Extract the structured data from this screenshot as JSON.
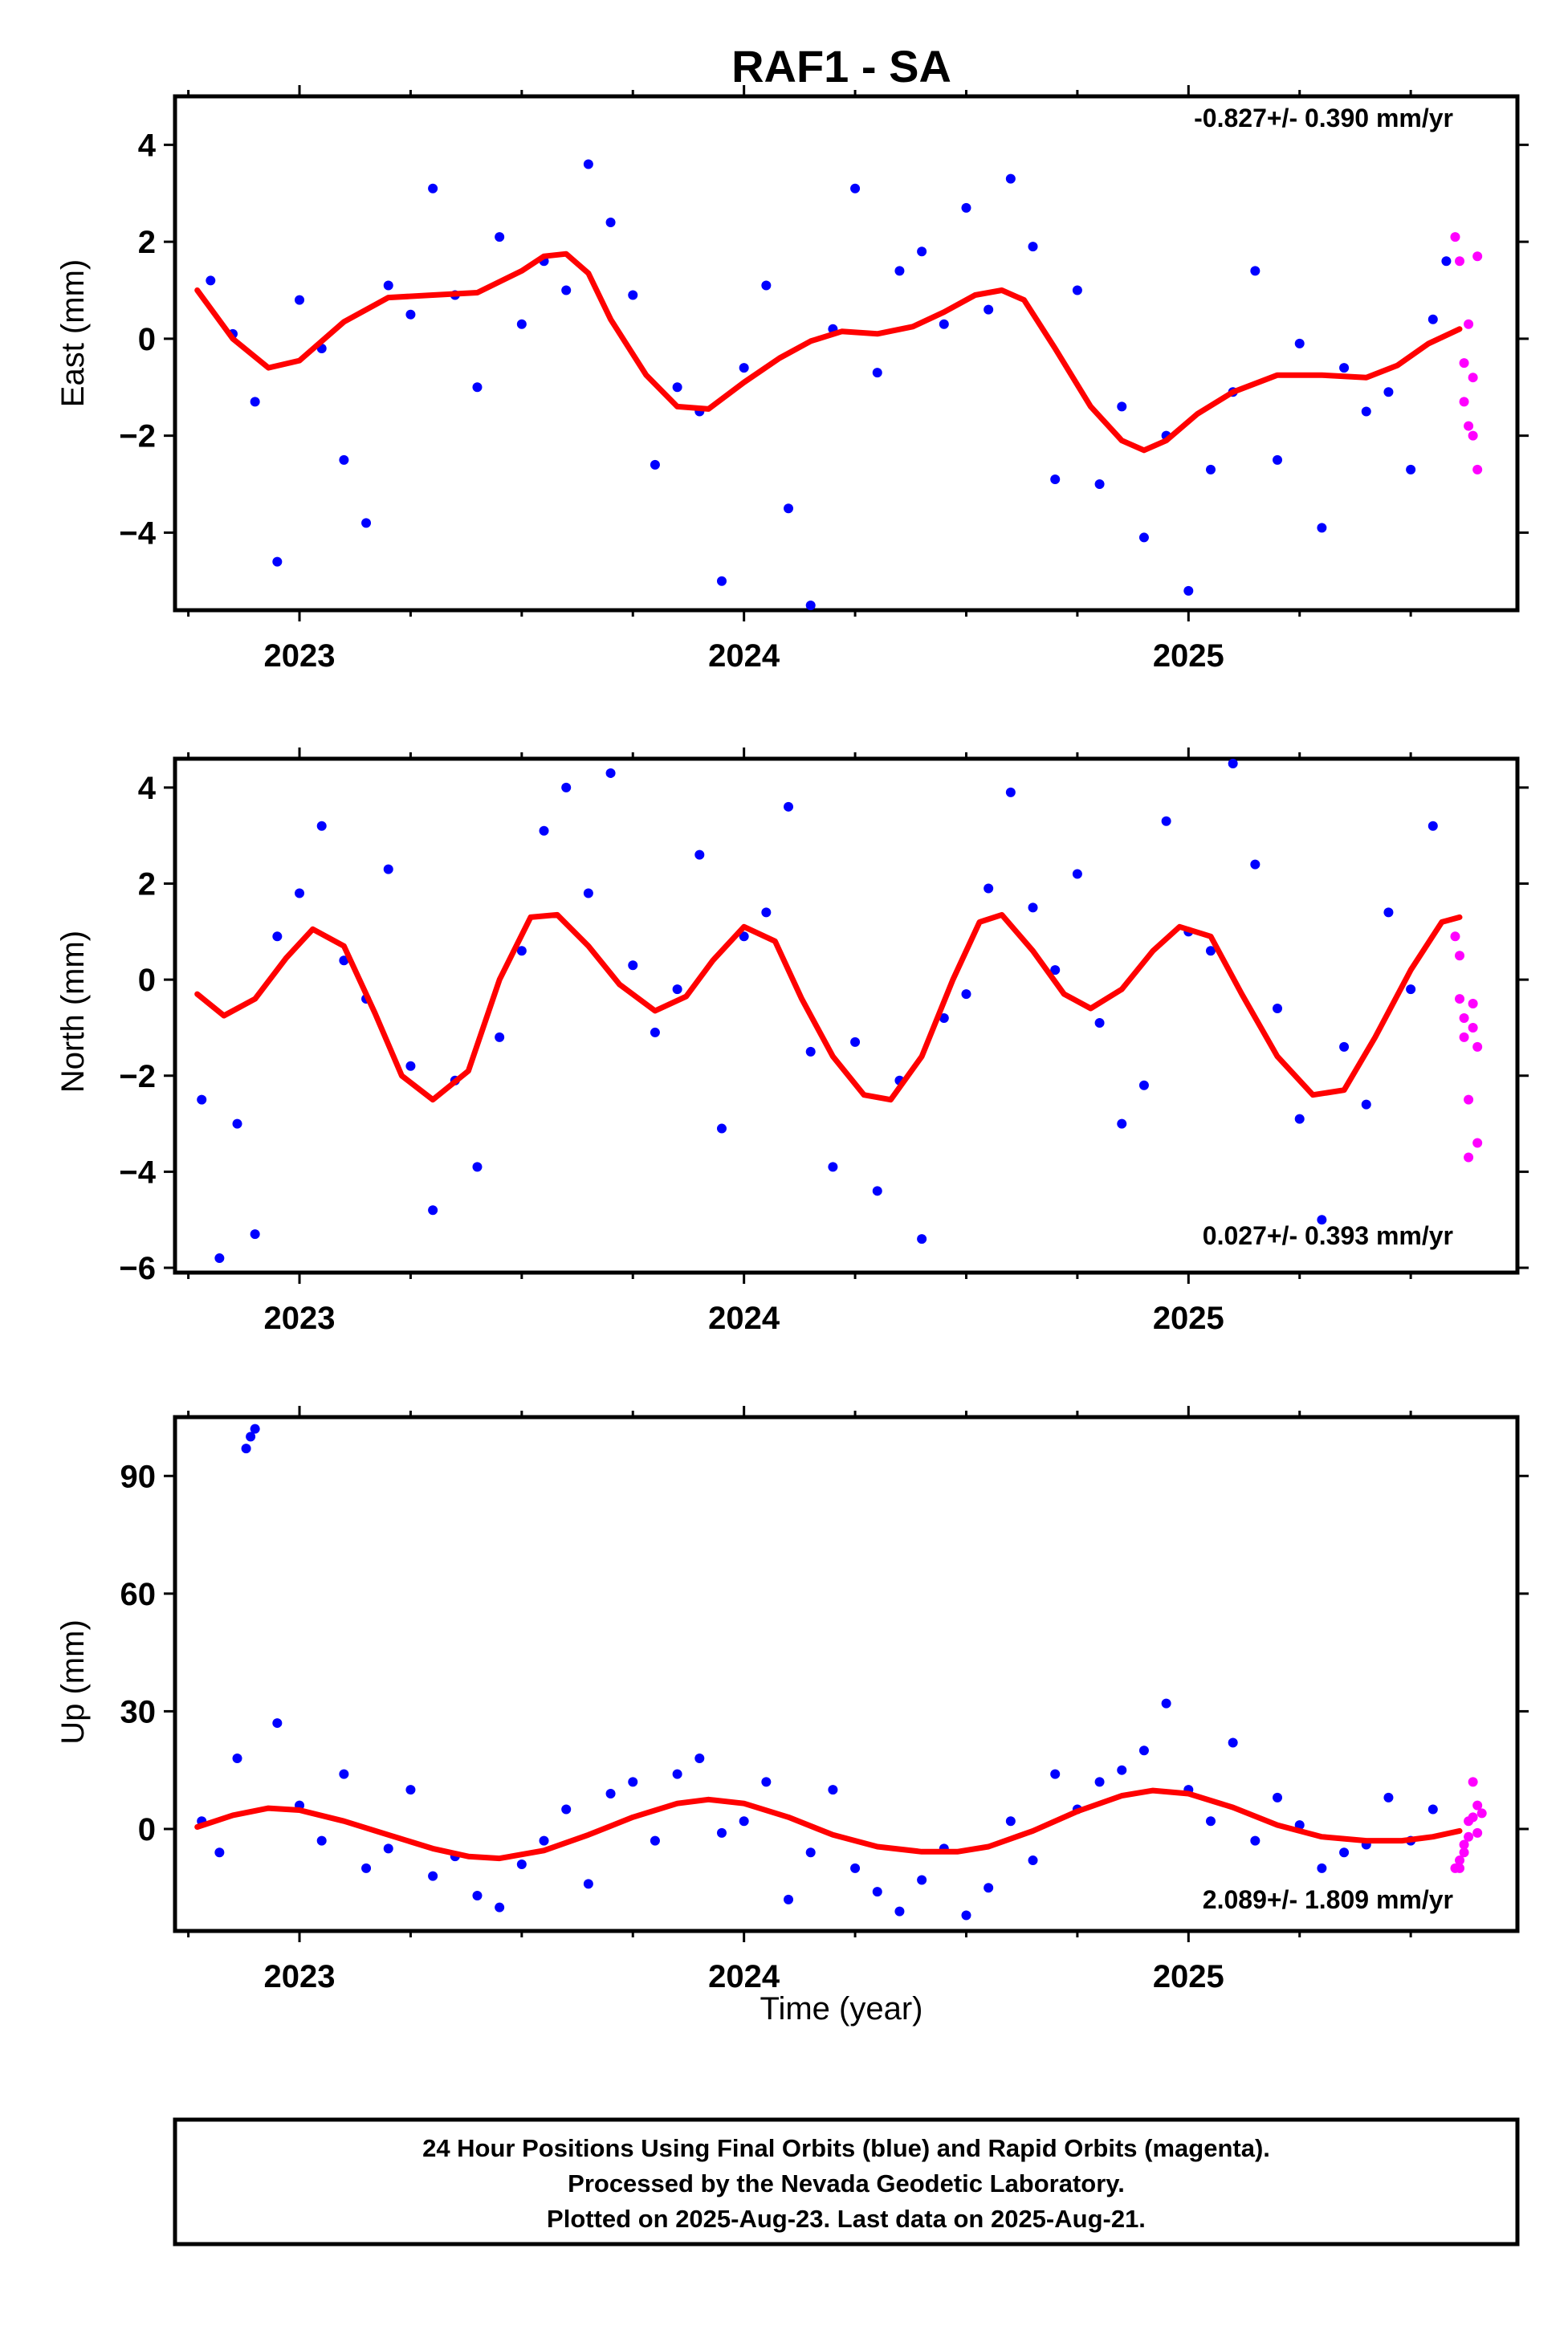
{
  "title": "RAF1 - SA",
  "x_axis_label": "Time (year)",
  "footer": {
    "line1": "24 Hour Positions Using Final Orbits (blue) and Rapid Orbits (magenta).",
    "line2": "Processed by the Nevada Geodetic Laboratory.",
    "line3": "Plotted on 2025-Aug-23. Last data on 2025-Aug-21."
  },
  "colors": {
    "final": "#0000ff",
    "rapid": "#ff00ff",
    "model": "#ff0000",
    "frame": "#000000"
  },
  "chart_data": [
    {
      "type": "scatter",
      "name": "east",
      "ylabel": "East (mm)",
      "rate_text": "-0.827+/- 0.390 mm/yr",
      "rate_position": "top-right",
      "xlim": [
        2022.72,
        2025.74
      ],
      "ylim": [
        -5.6,
        5.0
      ],
      "yticks": [
        -4,
        -2,
        0,
        2,
        4
      ],
      "ytick_labels": [
        "−4",
        "−2",
        "0",
        "2",
        "4"
      ],
      "xticks": [
        2023,
        2024,
        2025
      ],
      "xtick_labels": [
        "2023",
        "2024",
        "2025"
      ],
      "model": {
        "x": [
          2022.77,
          2022.85,
          2022.93,
          2023.0,
          2023.1,
          2023.2,
          2023.3,
          2023.4,
          2023.5,
          2023.55,
          2023.6,
          2023.65,
          2023.7,
          2023.78,
          2023.85,
          2023.92,
          2024.0,
          2024.08,
          2024.15,
          2024.22,
          2024.3,
          2024.38,
          2024.45,
          2024.52,
          2024.58,
          2024.63,
          2024.7,
          2024.78,
          2024.85,
          2024.9,
          2024.95,
          2025.02,
          2025.1,
          2025.2,
          2025.3,
          2025.4,
          2025.47,
          2025.54,
          2025.61
        ],
        "y": [
          1.0,
          0.0,
          -0.6,
          -0.45,
          0.35,
          0.85,
          0.9,
          0.95,
          1.4,
          1.7,
          1.75,
          1.35,
          0.4,
          -0.75,
          -1.4,
          -1.45,
          -0.9,
          -0.4,
          -0.05,
          0.15,
          0.1,
          0.25,
          0.55,
          0.9,
          1.0,
          0.8,
          -0.2,
          -1.4,
          -2.1,
          -2.3,
          -2.1,
          -1.55,
          -1.1,
          -0.75,
          -0.75,
          -0.8,
          -0.55,
          -0.1,
          0.2
        ]
      },
      "final": {
        "x": [
          2022.8,
          2022.85,
          2022.9,
          2022.95,
          2023.0,
          2023.05,
          2023.1,
          2023.15,
          2023.2,
          2023.25,
          2023.3,
          2023.35,
          2023.4,
          2023.45,
          2023.5,
          2023.55,
          2023.6,
          2023.65,
          2023.7,
          2023.75,
          2023.8,
          2023.85,
          2023.9,
          2023.95,
          2024.0,
          2024.05,
          2024.1,
          2024.15,
          2024.2,
          2024.25,
          2024.3,
          2024.35,
          2024.4,
          2024.45,
          2024.5,
          2024.55,
          2024.6,
          2024.65,
          2024.7,
          2024.75,
          2024.8,
          2024.85,
          2024.9,
          2024.95,
          2025.0,
          2025.05,
          2025.1,
          2025.15,
          2025.2,
          2025.25,
          2025.3,
          2025.35,
          2025.4,
          2025.45,
          2025.5,
          2025.55,
          2025.58
        ],
        "y": [
          1.2,
          0.1,
          -1.3,
          -4.6,
          0.8,
          -0.2,
          -2.5,
          -3.8,
          1.1,
          0.5,
          3.1,
          0.9,
          -1.0,
          2.1,
          0.3,
          1.6,
          1.0,
          3.6,
          2.4,
          0.9,
          -2.6,
          -1.0,
          -1.5,
          -5.0,
          -0.6,
          1.1,
          -3.5,
          -5.5,
          0.2,
          3.1,
          -0.7,
          1.4,
          1.8,
          0.3,
          2.7,
          0.6,
          3.3,
          1.9,
          -2.9,
          1.0,
          -3.0,
          -1.4,
          -4.1,
          -2.0,
          -5.2,
          -2.7,
          -1.1,
          1.4,
          -2.5,
          -0.1,
          -3.9,
          -0.6,
          -1.5,
          -1.1,
          -2.7,
          0.4,
          1.6
        ]
      },
      "rapid": {
        "x": [
          2025.6,
          2025.61,
          2025.62,
          2025.62,
          2025.63,
          2025.63,
          2025.64,
          2025.64,
          2025.65,
          2025.65
        ],
        "y": [
          2.1,
          1.6,
          -0.5,
          -1.3,
          -1.8,
          0.3,
          -0.8,
          -2.0,
          1.7,
          -2.7
        ]
      }
    },
    {
      "type": "scatter",
      "name": "north",
      "ylabel": "North (mm)",
      "rate_text": "0.027+/- 0.393 mm/yr",
      "rate_position": "bottom-right",
      "xlim": [
        2022.72,
        2025.74
      ],
      "ylim": [
        -6.1,
        4.6
      ],
      "yticks": [
        -6,
        -4,
        -2,
        0,
        2,
        4
      ],
      "ytick_labels": [
        "−6",
        "−4",
        "−2",
        "0",
        "2",
        "4"
      ],
      "xticks": [
        2023,
        2024,
        2025
      ],
      "xtick_labels": [
        "2023",
        "2024",
        "2025"
      ],
      "model": {
        "x": [
          2022.77,
          2022.83,
          2022.9,
          2022.97,
          2023.03,
          2023.1,
          2023.17,
          2023.23,
          2023.3,
          2023.38,
          2023.45,
          2023.52,
          2023.58,
          2023.65,
          2023.72,
          2023.8,
          2023.87,
          2023.93,
          2024.0,
          2024.07,
          2024.13,
          2024.2,
          2024.27,
          2024.33,
          2024.4,
          2024.47,
          2024.53,
          2024.58,
          2024.65,
          2024.72,
          2024.78,
          2024.85,
          2024.92,
          2024.98,
          2025.05,
          2025.12,
          2025.2,
          2025.28,
          2025.35,
          2025.42,
          2025.5,
          2025.57,
          2025.61
        ],
        "y": [
          -0.3,
          -0.75,
          -0.4,
          0.45,
          1.05,
          0.7,
          -0.7,
          -2.0,
          -2.5,
          -1.9,
          0.0,
          1.3,
          1.35,
          0.7,
          -0.1,
          -0.65,
          -0.35,
          0.4,
          1.1,
          0.8,
          -0.4,
          -1.6,
          -2.4,
          -2.5,
          -1.6,
          0.0,
          1.2,
          1.35,
          0.6,
          -0.3,
          -0.6,
          -0.2,
          0.6,
          1.1,
          0.9,
          -0.3,
          -1.6,
          -2.4,
          -2.3,
          -1.2,
          0.2,
          1.2,
          1.3
        ]
      },
      "final": {
        "x": [
          2022.78,
          2022.82,
          2022.86,
          2022.9,
          2022.95,
          2023.0,
          2023.05,
          2023.1,
          2023.15,
          2023.2,
          2023.25,
          2023.3,
          2023.35,
          2023.4,
          2023.45,
          2023.5,
          2023.55,
          2023.6,
          2023.65,
          2023.7,
          2023.75,
          2023.8,
          2023.85,
          2023.9,
          2023.95,
          2024.0,
          2024.05,
          2024.1,
          2024.15,
          2024.2,
          2024.25,
          2024.3,
          2024.35,
          2024.4,
          2024.45,
          2024.5,
          2024.55,
          2024.6,
          2024.65,
          2024.7,
          2024.75,
          2024.8,
          2024.85,
          2024.9,
          2024.95,
          2025.0,
          2025.05,
          2025.1,
          2025.15,
          2025.2,
          2025.25,
          2025.3,
          2025.35,
          2025.4,
          2025.45,
          2025.5,
          2025.55
        ],
        "y": [
          -2.5,
          -5.8,
          -3.0,
          -5.3,
          0.9,
          1.8,
          3.2,
          0.4,
          -0.4,
          2.3,
          -1.8,
          -4.8,
          -2.1,
          -3.9,
          -1.2,
          0.6,
          3.1,
          4.0,
          1.8,
          4.3,
          0.3,
          -1.1,
          -0.2,
          2.6,
          -3.1,
          0.9,
          1.4,
          3.6,
          -1.5,
          -3.9,
          -1.3,
          -4.4,
          -2.1,
          -5.4,
          -0.8,
          -0.3,
          1.9,
          3.9,
          1.5,
          0.2,
          2.2,
          -0.9,
          -3.0,
          -2.2,
          3.3,
          1.0,
          0.6,
          4.5,
          2.4,
          -0.6,
          -2.9,
          -5.0,
          -1.4,
          -2.6,
          1.4,
          -0.2,
          3.2
        ]
      },
      "rapid": {
        "x": [
          2025.6,
          2025.61,
          2025.61,
          2025.62,
          2025.62,
          2025.63,
          2025.63,
          2025.64,
          2025.64,
          2025.65,
          2025.65
        ],
        "y": [
          0.9,
          0.5,
          -0.4,
          -0.8,
          -1.2,
          -3.7,
          -2.5,
          -1.0,
          -0.5,
          -3.4,
          -1.4
        ]
      }
    },
    {
      "type": "scatter",
      "name": "up",
      "ylabel": "Up (mm)",
      "rate_text": "2.089+/- 1.809 mm/yr",
      "rate_position": "bottom-right",
      "xlim": [
        2022.72,
        2025.74
      ],
      "ylim": [
        -26,
        105
      ],
      "yticks": [
        0,
        30,
        60,
        90
      ],
      "ytick_labels": [
        "0",
        "30",
        "60",
        "90"
      ],
      "xticks": [
        2023,
        2024,
        2025
      ],
      "xtick_labels": [
        "2023",
        "2024",
        "2025"
      ],
      "model": {
        "x": [
          2022.77,
          2022.85,
          2022.93,
          2023.0,
          2023.1,
          2023.2,
          2023.3,
          2023.38,
          2023.45,
          2023.55,
          2023.65,
          2023.75,
          2023.85,
          2023.92,
          2024.0,
          2024.1,
          2024.2,
          2024.3,
          2024.4,
          2024.48,
          2024.55,
          2024.65,
          2024.75,
          2024.85,
          2024.92,
          2025.0,
          2025.1,
          2025.2,
          2025.3,
          2025.4,
          2025.48,
          2025.55,
          2025.61
        ],
        "y": [
          0.5,
          3.5,
          5.3,
          4.8,
          2.0,
          -1.5,
          -5.0,
          -7.0,
          -7.5,
          -5.5,
          -1.5,
          3.0,
          6.5,
          7.5,
          6.5,
          3.0,
          -1.5,
          -4.5,
          -5.8,
          -5.8,
          -4.5,
          -0.5,
          4.5,
          8.5,
          9.8,
          9.0,
          5.5,
          1.0,
          -2.0,
          -3.0,
          -3.0,
          -2.0,
          -0.5
        ]
      },
      "final": {
        "x": [
          2022.78,
          2022.82,
          2022.86,
          2022.88,
          2022.89,
          2022.9,
          2022.95,
          2023.0,
          2023.05,
          2023.1,
          2023.15,
          2023.2,
          2023.25,
          2023.3,
          2023.35,
          2023.4,
          2023.45,
          2023.5,
          2023.55,
          2023.6,
          2023.65,
          2023.7,
          2023.75,
          2023.8,
          2023.85,
          2023.9,
          2023.95,
          2024.0,
          2024.05,
          2024.1,
          2024.15,
          2024.2,
          2024.25,
          2024.3,
          2024.35,
          2024.4,
          2024.45,
          2024.5,
          2024.55,
          2024.6,
          2024.65,
          2024.7,
          2024.75,
          2024.8,
          2024.85,
          2024.9,
          2024.95,
          2025.0,
          2025.05,
          2025.1,
          2025.15,
          2025.2,
          2025.25,
          2025.3,
          2025.35,
          2025.4,
          2025.45,
          2025.5,
          2025.55
        ],
        "y": [
          2.0,
          -6.0,
          18.0,
          97.0,
          100.0,
          102.0,
          27.0,
          6.0,
          -3.0,
          14.0,
          -10.0,
          -5.0,
          10.0,
          -12.0,
          -7.0,
          -17.0,
          -20.0,
          -9.0,
          -3.0,
          5.0,
          -14.0,
          9.0,
          12.0,
          -3.0,
          14.0,
          18.0,
          -1.0,
          2.0,
          12.0,
          -18.0,
          -6.0,
          10.0,
          -10.0,
          -16.0,
          -21.0,
          -13.0,
          -5.0,
          -22.0,
          -15.0,
          2.0,
          -8.0,
          14.0,
          5.0,
          12.0,
          15.0,
          20.0,
          32.0,
          10.0,
          2.0,
          22.0,
          -3.0,
          8.0,
          1.0,
          -10.0,
          -6.0,
          -4.0,
          8.0,
          -3.0,
          5.0
        ]
      },
      "rapid": {
        "x": [
          2025.6,
          2025.61,
          2025.61,
          2025.62,
          2025.62,
          2025.63,
          2025.63,
          2025.64,
          2025.64,
          2025.65,
          2025.65,
          2025.66
        ],
        "y": [
          -10.0,
          -8.0,
          -10.0,
          -6.0,
          -4.0,
          2.0,
          -2.0,
          3.0,
          12.0,
          6.0,
          -1.0,
          4.0
        ]
      }
    }
  ]
}
